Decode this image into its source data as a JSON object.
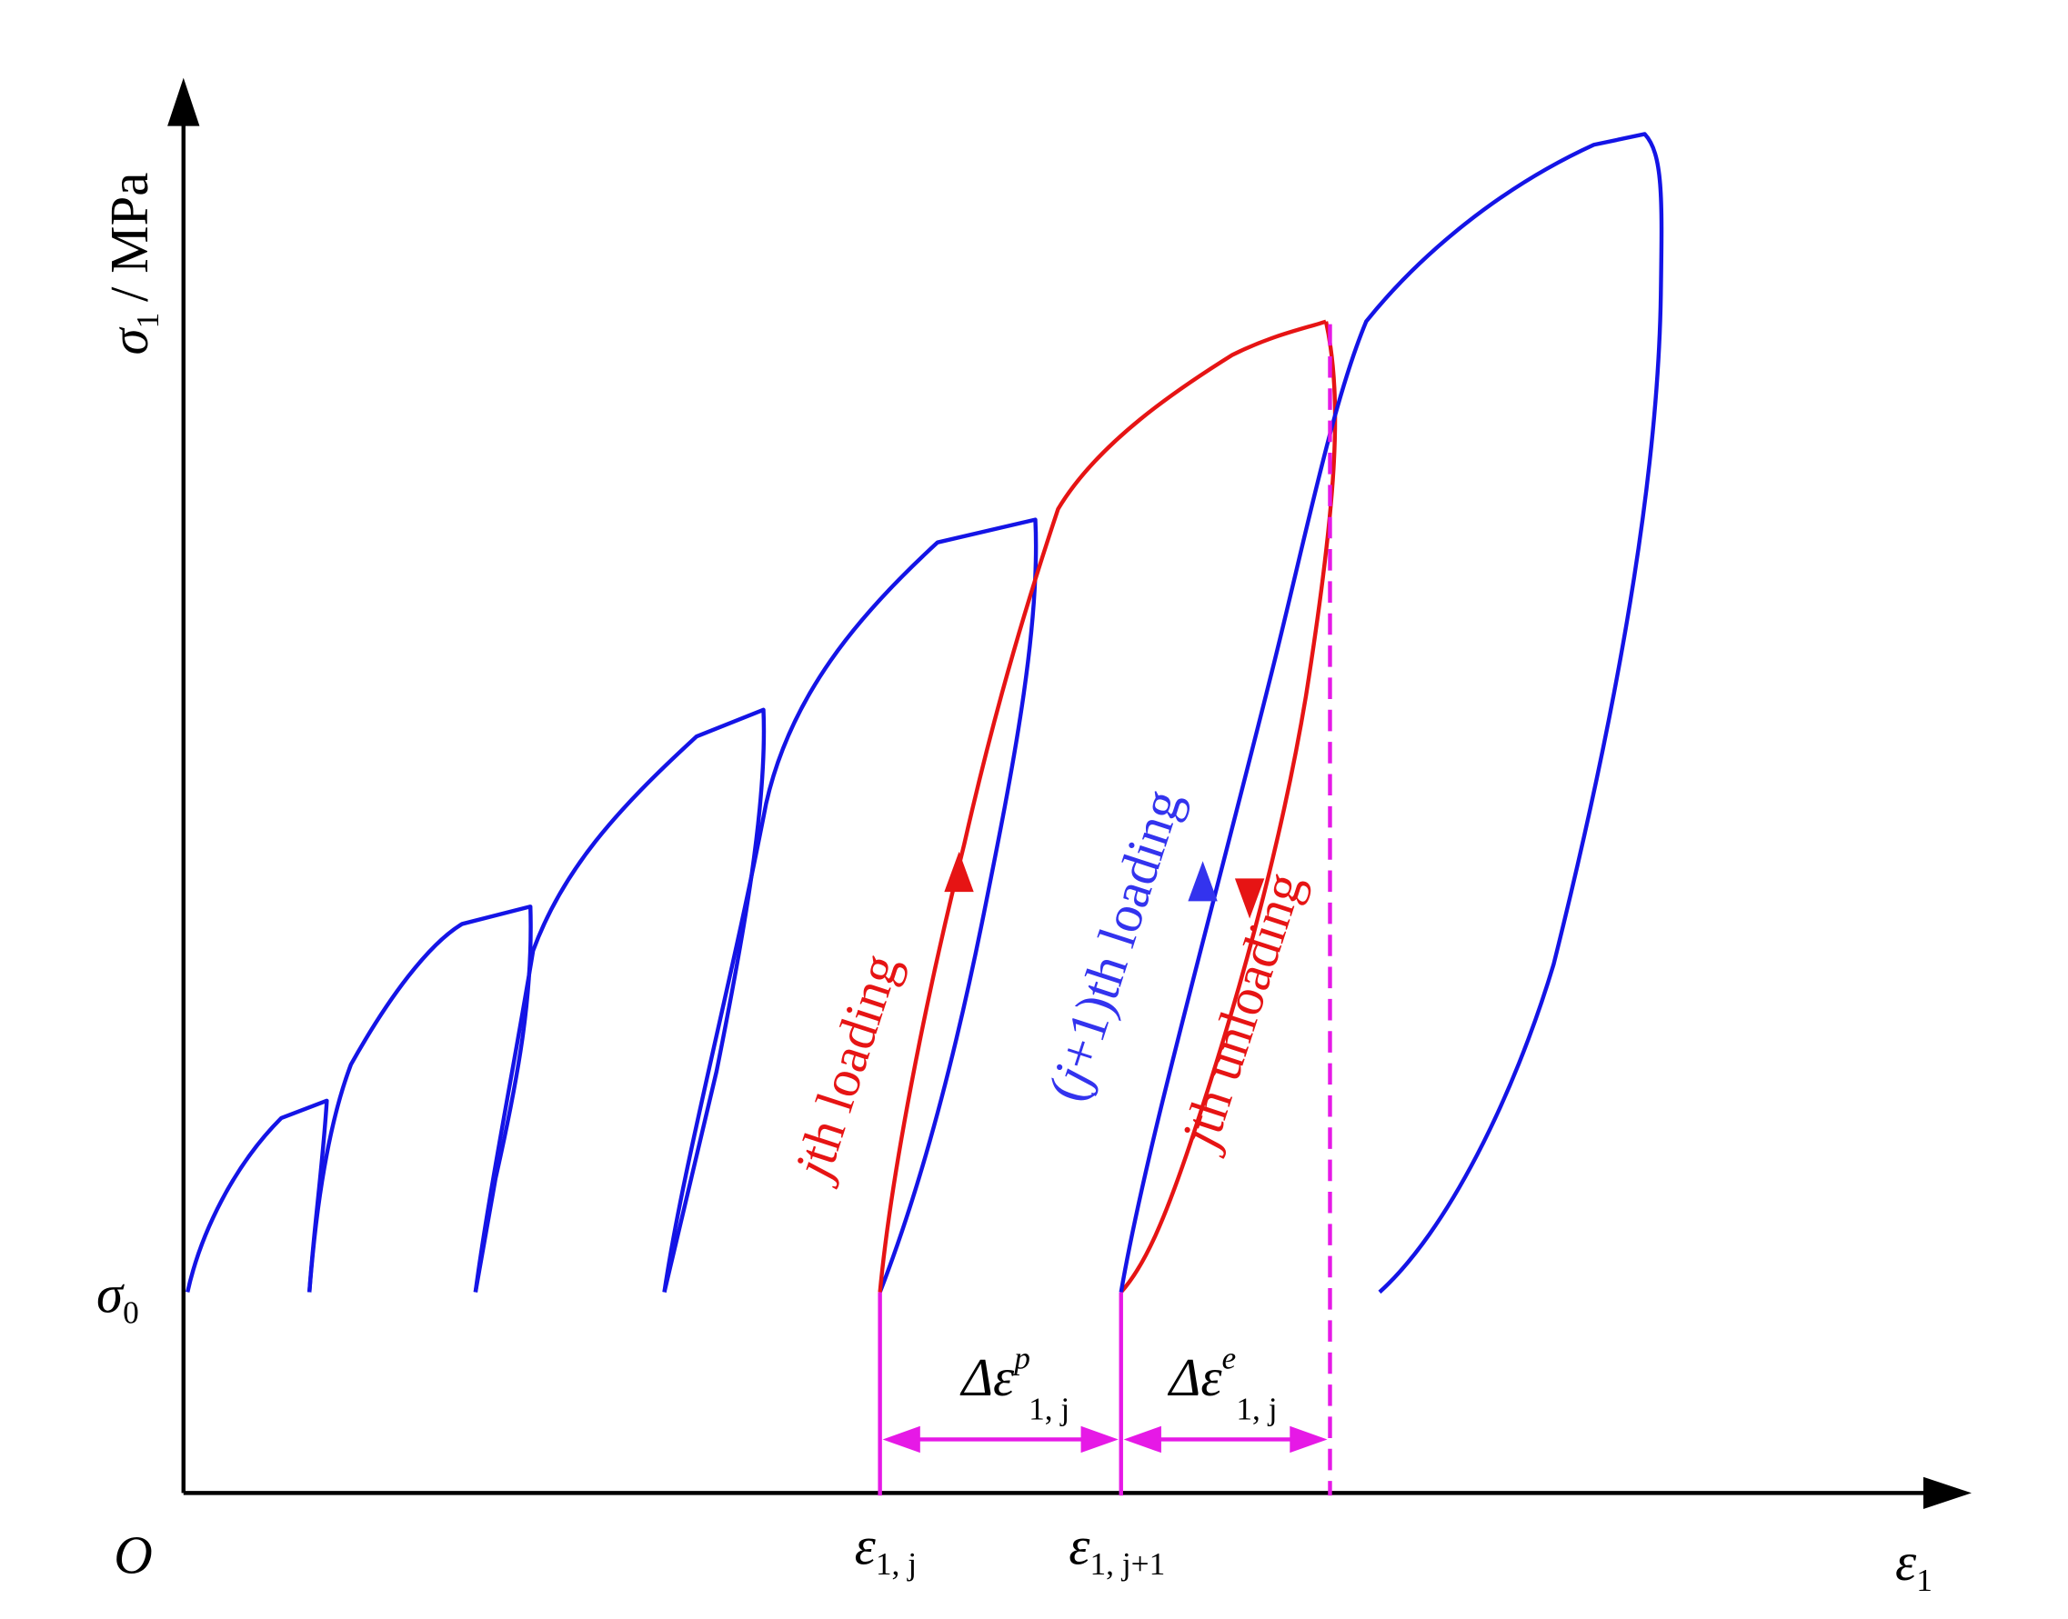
{
  "axes": {
    "y_label": {
      "symbol": "σ",
      "sub": "1",
      "unit": "/ MPa"
    },
    "y_level": {
      "symbol": "σ",
      "sub": "0"
    },
    "origin": "O",
    "x_label": {
      "symbol": "ε",
      "sub": "1"
    }
  },
  "strain_marks": [
    {
      "symbol": "ε",
      "sub": "1, j"
    },
    {
      "symbol": "ε",
      "sub": "1, j+1"
    }
  ],
  "increments": [
    {
      "symbol": "Δε",
      "sup": "p",
      "sub": "1, j"
    },
    {
      "symbol": "Δε",
      "sup": "e",
      "sub": "1, j"
    }
  ],
  "annotations": [
    {
      "prefix": "",
      "index": "j",
      "text": "th loading"
    },
    {
      "prefix": "(",
      "index": "j",
      "text": "+1)th loading"
    },
    {
      "prefix": "",
      "index": "j",
      "text": "th unloading"
    }
  ]
}
